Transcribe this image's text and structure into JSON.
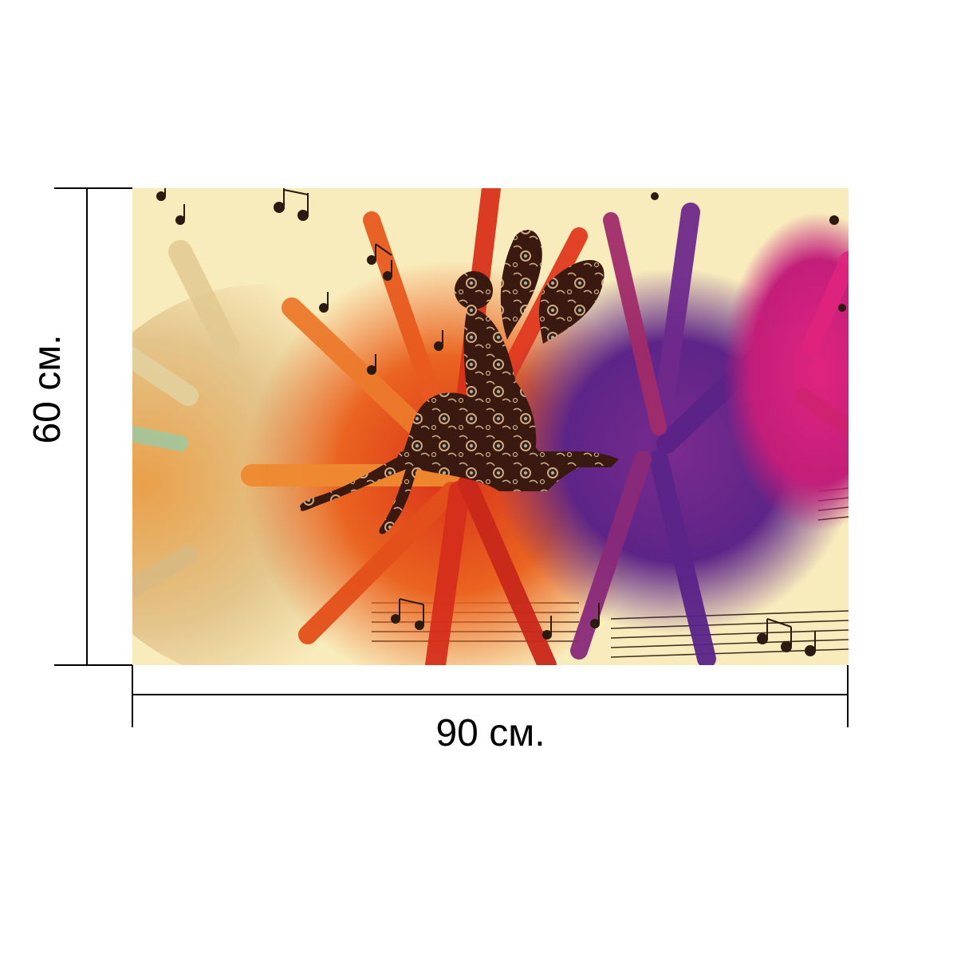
{
  "product": {
    "width_label": "90 см.",
    "height_label": "60 см."
  },
  "artwork": {
    "icon": "fairy-silhouette-music-splash-image",
    "colors": {
      "background": "#f9ecbc",
      "left_splash": "#e8c88a",
      "orange_splash": "#e8561c",
      "red_splash": "#d93a1e",
      "purple_splash": "#6a2a8a",
      "magenta_splash": "#d4237a",
      "fairy": "#3a1a10",
      "fairy_pattern": "#c9a882",
      "notes": "#2a1a10"
    }
  }
}
